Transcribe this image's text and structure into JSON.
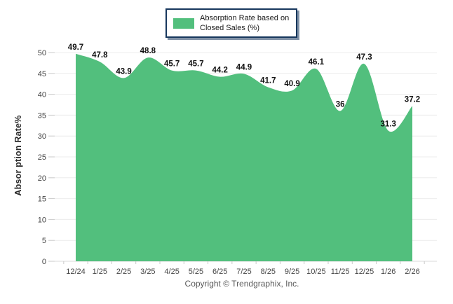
{
  "window": {
    "background": "#ffffff"
  },
  "legend": {
    "lines": [
      "Absorption Rate based on",
      "Closed Sales (%)"
    ],
    "swatch_color": "#52bf7d",
    "border_color": "#17375d"
  },
  "footer": {
    "copyright": "Copyright © Trendgraphix, Inc."
  },
  "chart_data": {
    "type": "area",
    "title": "",
    "categories": [
      "12/24",
      "1/25",
      "2/25",
      "3/25",
      "4/25",
      "5/25",
      "6/25",
      "7/25",
      "8/25",
      "9/25",
      "10/25",
      "11/25",
      "12/25",
      "1/26",
      "2/26"
    ],
    "series": [
      {
        "name": "Absorption Rate based on Closed Sales (%)",
        "values": [
          49.7,
          47.8,
          43.9,
          48.8,
          45.7,
          45.7,
          44.2,
          44.9,
          41.7,
          40.9,
          46.1,
          36,
          47.3,
          31.3,
          37.2
        ],
        "point_labels": [
          "49.7",
          "47.8",
          "43.9",
          "48.8",
          "45.7",
          "45.7",
          "44.2",
          "44.9",
          "41.7",
          "40.9",
          "46.1",
          "36",
          "47.3",
          "31.3",
          "37.2"
        ],
        "color": "#52bf7d"
      }
    ],
    "xlabel": "",
    "ylabel": "Absor ption Rate%",
    "ylim": [
      0,
      50
    ],
    "ytick_interval": 5,
    "ytick_labels": [
      "0",
      "5",
      "10",
      "15",
      "20",
      "25",
      "30",
      "35",
      "40",
      "45",
      "50"
    ],
    "grid": "horizontal",
    "smooth": true,
    "legend_position": "top-center",
    "colors": {
      "area": "#52bf7d",
      "gridline": "#ececec",
      "baseline": "#d9d9d9",
      "tick": "#c9c9c9",
      "tick_text": "#454545",
      "data_label_text": "#111111",
      "axis_title_text": "#2b2b2b",
      "footer_text": "#5a5a5a"
    }
  }
}
